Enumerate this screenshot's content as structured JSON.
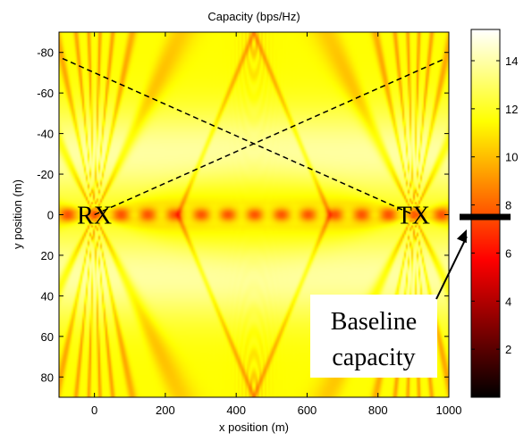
{
  "chart_data": {
    "type": "heatmap",
    "title": "Capacity (bps/Hz)",
    "xlabel": "x position (m)",
    "ylabel": "y position (m)",
    "xlim": [
      -100,
      1000
    ],
    "ylim": [
      -90,
      90
    ],
    "y_reversed": true,
    "xticks": [
      0,
      200,
      400,
      600,
      800,
      1000
    ],
    "yticks": [
      -80,
      -60,
      -40,
      -20,
      0,
      20,
      40,
      60,
      80
    ],
    "colormap": "hot",
    "colorbar": {
      "range": [
        0,
        15.3
      ],
      "ticks": [
        2,
        4,
        6,
        8,
        10,
        12,
        14
      ]
    },
    "markers": [
      {
        "label": "RX",
        "x": 0,
        "y": 0
      },
      {
        "label": "TX",
        "x": 900,
        "y": 0
      }
    ],
    "dashed_lines": [
      {
        "x": [
          -90,
          900
        ],
        "y": [
          -77,
          0
        ]
      },
      {
        "x": [
          0,
          990
        ],
        "y": [
          0,
          -77
        ]
      }
    ],
    "annotation": {
      "lines": [
        "Baseline",
        "capacity"
      ],
      "points_to_colorbar_value": 7.5
    }
  }
}
